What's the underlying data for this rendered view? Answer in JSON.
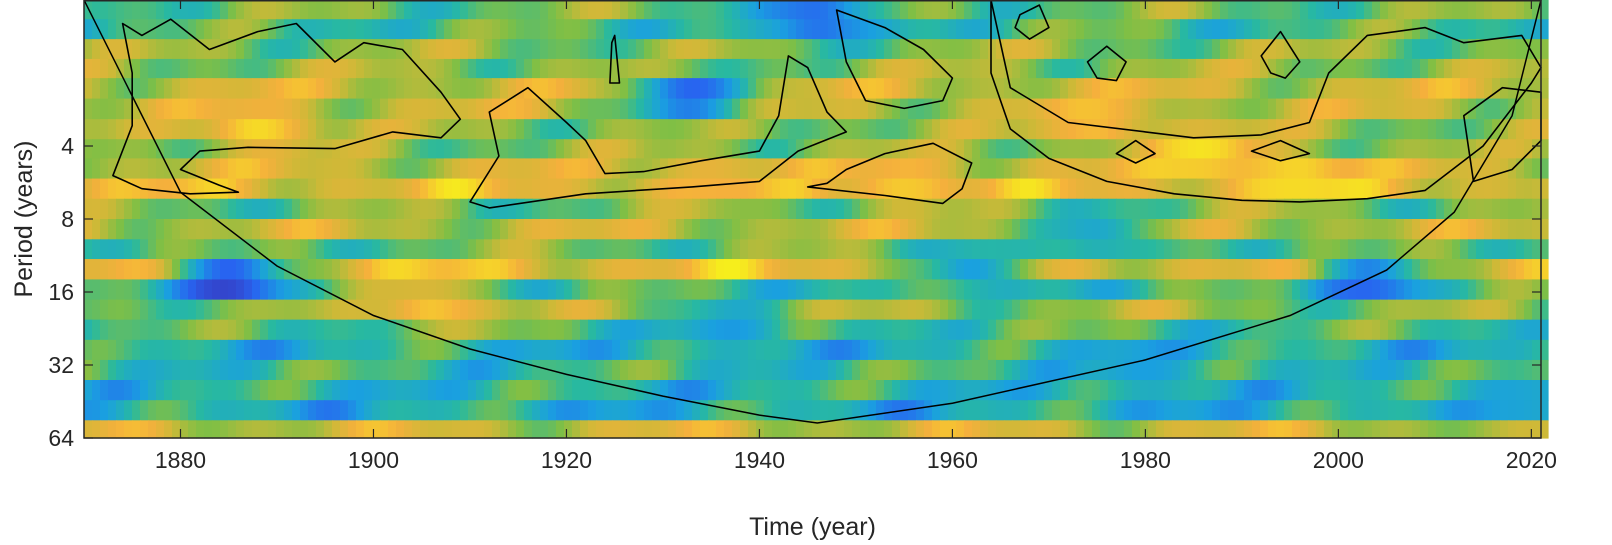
{
  "chart_data": {
    "type": "heatmap",
    "title": "",
    "xlabel": "Time (year)",
    "ylabel": "Period (years)",
    "xlim": [
      1870,
      2021
    ],
    "ylim": [
      1,
      64
    ],
    "y_scale": "log2",
    "x_ticks": [
      1880,
      1900,
      1920,
      1940,
      1960,
      1980,
      2000,
      2020
    ],
    "y_ticks": [
      4,
      8,
      16,
      32,
      64
    ],
    "grid": false,
    "legend": "none",
    "colormap": "parula",
    "colors": {
      "low": "#3e26a8",
      "mid_low": "#1aa0e0",
      "mid": "#7fbf45",
      "mid_high": "#f5b03c",
      "high": "#f6ee1c",
      "contour": "#000000",
      "cone_of_influence": "#000000"
    },
    "period_bands": [
      1.2,
      1.45,
      1.75,
      2.1,
      2.55,
      3.1,
      3.75,
      4.5,
      5.45,
      6.6,
      8.0,
      9.7,
      11.7,
      14.2,
      17.2,
      20.8,
      25.2,
      30.5,
      36.9,
      44.7,
      54.1,
      64
    ],
    "band_baseline": [
      0.55,
      0.5,
      0.6,
      0.62,
      0.72,
      0.7,
      0.62,
      0.6,
      0.72,
      0.8,
      0.56,
      0.7,
      0.56,
      0.82,
      0.48,
      0.62,
      0.5,
      0.4,
      0.46,
      0.42,
      0.38,
      0.72
    ],
    "power_hotspots": [
      {
        "year": 1888,
        "period": 3.4,
        "value": 0.95
      },
      {
        "year": 1906,
        "period": 18.0,
        "value": 0.92
      },
      {
        "year": 1935,
        "period": 5.6,
        "value": 0.85
      },
      {
        "year": 1955,
        "period": 5.7,
        "value": 0.92
      },
      {
        "year": 1986,
        "period": 4.4,
        "value": 1.0
      },
      {
        "year": 1996,
        "period": 5.4,
        "value": 0.98
      },
      {
        "year": 1975,
        "period": 3.2,
        "value": 0.9
      },
      {
        "year": 1885,
        "period": 14.2,
        "value": 0.02
      },
      {
        "year": 1933,
        "period": 2.5,
        "value": 0.1
      },
      {
        "year": 2003,
        "period": 14.2,
        "value": 0.12
      },
      {
        "year": 1946,
        "period": 1.2,
        "value": 0.1
      },
      {
        "year": 1937,
        "period": 22.0,
        "value": 0.28
      },
      {
        "year": 1962,
        "period": 13.0,
        "value": 0.3
      },
      {
        "year": 1975,
        "period": 9.5,
        "value": 0.3
      },
      {
        "year": 1980,
        "period": 34.0,
        "value": 0.3
      },
      {
        "year": 2018,
        "period": 46.0,
        "value": 0.32
      }
    ],
    "cone_of_influence": [
      {
        "x": 1870,
        "y": 1.0
      },
      {
        "x": 1880,
        "y": 6.2
      },
      {
        "x": 1890,
        "y": 12.5
      },
      {
        "x": 1900,
        "y": 20.0
      },
      {
        "x": 1910,
        "y": 27.5
      },
      {
        "x": 1920,
        "y": 35.0
      },
      {
        "x": 1930,
        "y": 43.0
      },
      {
        "x": 1940,
        "y": 51.5
      },
      {
        "x": 1946,
        "y": 55.5
      },
      {
        "x": 1960,
        "y": 46.0
      },
      {
        "x": 1980,
        "y": 30.5
      },
      {
        "x": 1995,
        "y": 20.0
      },
      {
        "x": 2005,
        "y": 13.0
      },
      {
        "x": 2012,
        "y": 7.5
      },
      {
        "x": 2018,
        "y": 3.0
      },
      {
        "x": 2021,
        "y": 1.0
      }
    ],
    "significance_contours": [
      [
        {
          "x": 1874,
          "y": 1.25
        },
        {
          "x": 1876,
          "y": 1.4
        },
        {
          "x": 1879,
          "y": 1.2
        },
        {
          "x": 1883,
          "y": 1.6
        },
        {
          "x": 1888,
          "y": 1.35
        },
        {
          "x": 1892,
          "y": 1.25
        },
        {
          "x": 1896,
          "y": 1.8
        },
        {
          "x": 1899,
          "y": 1.5
        },
        {
          "x": 1903,
          "y": 1.6
        },
        {
          "x": 1907,
          "y": 2.4
        },
        {
          "x": 1909,
          "y": 3.1
        },
        {
          "x": 1907,
          "y": 3.7
        },
        {
          "x": 1902,
          "y": 3.5
        },
        {
          "x": 1896,
          "y": 4.1
        },
        {
          "x": 1887,
          "y": 4.05
        },
        {
          "x": 1882,
          "y": 4.2
        },
        {
          "x": 1880,
          "y": 5.0
        },
        {
          "x": 1884,
          "y": 5.8
        },
        {
          "x": 1886,
          "y": 6.2
        },
        {
          "x": 1881,
          "y": 6.3
        },
        {
          "x": 1876,
          "y": 6.0
        },
        {
          "x": 1873,
          "y": 5.3
        },
        {
          "x": 1875,
          "y": 3.3
        },
        {
          "x": 1875,
          "y": 2.0
        }
      ],
      [
        {
          "x": 1912,
          "y": 2.9
        },
        {
          "x": 1916,
          "y": 2.3
        },
        {
          "x": 1920,
          "y": 3.2
        },
        {
          "x": 1922,
          "y": 3.8
        },
        {
          "x": 1924,
          "y": 5.2
        },
        {
          "x": 1928,
          "y": 5.1
        },
        {
          "x": 1934,
          "y": 4.6
        },
        {
          "x": 1940,
          "y": 4.2
        },
        {
          "x": 1942,
          "y": 3.0
        },
        {
          "x": 1943,
          "y": 1.7
        },
        {
          "x": 1945,
          "y": 1.9
        },
        {
          "x": 1947,
          "y": 2.9
        },
        {
          "x": 1949,
          "y": 3.5
        },
        {
          "x": 1944,
          "y": 4.2
        },
        {
          "x": 1940,
          "y": 5.6
        },
        {
          "x": 1933,
          "y": 5.9
        },
        {
          "x": 1922,
          "y": 6.3
        },
        {
          "x": 1912,
          "y": 7.2
        },
        {
          "x": 1910,
          "y": 6.8
        },
        {
          "x": 1913,
          "y": 4.4
        }
      ],
      [
        {
          "x": 1925,
          "y": 1.4
        },
        {
          "x": 1925.5,
          "y": 2.2
        },
        {
          "x": 1924.5,
          "y": 2.2
        },
        {
          "x": 1924.7,
          "y": 1.5
        }
      ],
      [
        {
          "x": 1948,
          "y": 1.1
        },
        {
          "x": 1953,
          "y": 1.3
        },
        {
          "x": 1957,
          "y": 1.6
        },
        {
          "x": 1960,
          "y": 2.1
        },
        {
          "x": 1959,
          "y": 2.6
        },
        {
          "x": 1955,
          "y": 2.8
        },
        {
          "x": 1951,
          "y": 2.6
        },
        {
          "x": 1949,
          "y": 1.8
        }
      ],
      [
        {
          "x": 1949,
          "y": 5.0
        },
        {
          "x": 1953,
          "y": 4.3
        },
        {
          "x": 1958,
          "y": 3.9
        },
        {
          "x": 1962,
          "y": 4.7
        },
        {
          "x": 1961,
          "y": 6.0
        },
        {
          "x": 1959,
          "y": 6.9
        },
        {
          "x": 1953,
          "y": 6.4
        },
        {
          "x": 1945,
          "y": 5.9
        },
        {
          "x": 1947,
          "y": 5.7
        }
      ],
      [
        {
          "x": 1964,
          "y": 1.0
        },
        {
          "x": 1966,
          "y": 2.3
        },
        {
          "x": 1972,
          "y": 3.2
        },
        {
          "x": 1980,
          "y": 3.5
        },
        {
          "x": 1985,
          "y": 3.7
        },
        {
          "x": 1992,
          "y": 3.6
        },
        {
          "x": 1997,
          "y": 3.2
        },
        {
          "x": 1999,
          "y": 2.0
        },
        {
          "x": 2003,
          "y": 1.4
        },
        {
          "x": 2009,
          "y": 1.3
        },
        {
          "x": 2013,
          "y": 1.5
        },
        {
          "x": 2019,
          "y": 1.4
        },
        {
          "x": 2021,
          "y": 1.9
        },
        {
          "x": 2020,
          "y": 2.2
        },
        {
          "x": 2015,
          "y": 4.0
        },
        {
          "x": 2009,
          "y": 6.1
        },
        {
          "x": 2003,
          "y": 6.6
        },
        {
          "x": 1996,
          "y": 6.8
        },
        {
          "x": 1990,
          "y": 6.7
        },
        {
          "x": 1983,
          "y": 6.3
        },
        {
          "x": 1976,
          "y": 5.6
        },
        {
          "x": 1970,
          "y": 4.5
        },
        {
          "x": 1966,
          "y": 3.4
        },
        {
          "x": 1964,
          "y": 2.0
        }
      ],
      [
        {
          "x": 1967,
          "y": 1.15
        },
        {
          "x": 1969,
          "y": 1.05
        },
        {
          "x": 1970,
          "y": 1.3
        },
        {
          "x": 1968,
          "y": 1.45
        },
        {
          "x": 1966.5,
          "y": 1.3
        }
      ],
      [
        {
          "x": 1974,
          "y": 1.8
        },
        {
          "x": 1976,
          "y": 1.55
        },
        {
          "x": 1978,
          "y": 1.8
        },
        {
          "x": 1977,
          "y": 2.15
        },
        {
          "x": 1975,
          "y": 2.1
        }
      ],
      [
        {
          "x": 1977,
          "y": 4.3
        },
        {
          "x": 1979,
          "y": 3.8
        },
        {
          "x": 1981,
          "y": 4.3
        },
        {
          "x": 1979,
          "y": 4.7
        }
      ],
      [
        {
          "x": 1992,
          "y": 1.7
        },
        {
          "x": 1994,
          "y": 1.35
        },
        {
          "x": 1996,
          "y": 1.8
        },
        {
          "x": 1994.5,
          "y": 2.1
        },
        {
          "x": 1993,
          "y": 2.0
        }
      ],
      [
        {
          "x": 1991,
          "y": 4.2
        },
        {
          "x": 1994,
          "y": 3.8
        },
        {
          "x": 1997,
          "y": 4.3
        },
        {
          "x": 1994,
          "y": 4.6
        }
      ],
      [
        {
          "x": 2013,
          "y": 3.0
        },
        {
          "x": 2017,
          "y": 2.3
        },
        {
          "x": 2021,
          "y": 2.4
        },
        {
          "x": 2021,
          "y": 3.8
        },
        {
          "x": 2018,
          "y": 5.0
        },
        {
          "x": 2014,
          "y": 5.6
        }
      ]
    ]
  }
}
